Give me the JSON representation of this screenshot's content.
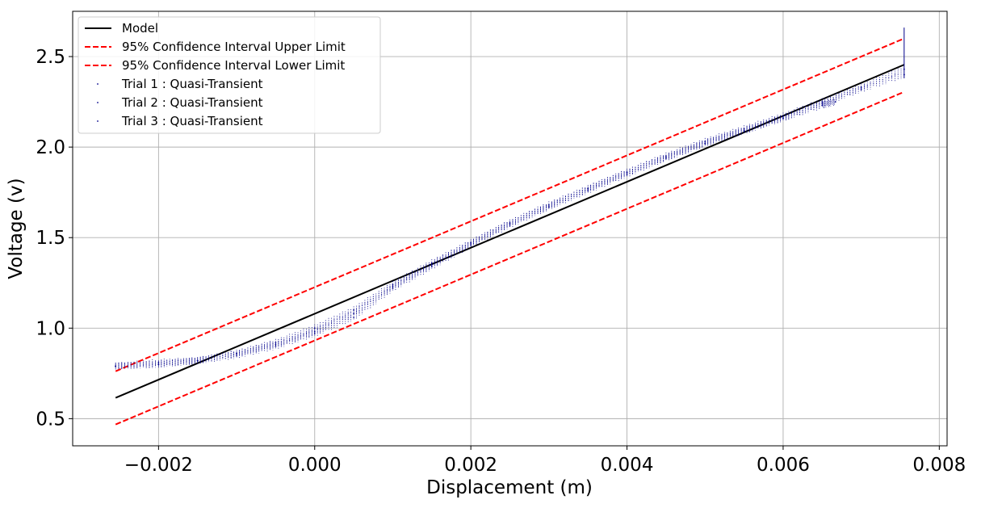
{
  "chart_data": {
    "type": "line",
    "title": "",
    "xlabel": "Displacement (m)",
    "ylabel": "Voltage (v)",
    "xlim": [
      -0.0031,
      0.0081
    ],
    "ylim": [
      0.35,
      2.75
    ],
    "x_ticks": [
      -0.002,
      0.0,
      0.002,
      0.004,
      0.006,
      0.008
    ],
    "x_tick_labels": [
      "−0.002",
      "0.000",
      "0.002",
      "0.004",
      "0.006",
      "0.008"
    ],
    "y_ticks": [
      0.5,
      1.0,
      1.5,
      2.0,
      2.5
    ],
    "y_tick_labels": [
      "0.5",
      "1.0",
      "1.5",
      "2.0",
      "2.5"
    ],
    "grid": true,
    "legend_position": "top-left",
    "series": [
      {
        "name": "Model",
        "style": "solid",
        "color": "#000000",
        "x": [
          -0.00255,
          0.00755
        ],
        "y": [
          0.615,
          2.455
        ]
      },
      {
        "name": "95% Confidence Interval Upper Limit",
        "style": "dashed",
        "color": "#ff0000",
        "x": [
          -0.00255,
          0.00755
        ],
        "y": [
          0.762,
          2.6
        ]
      },
      {
        "name": "95% Confidence Interval Lower Limit",
        "style": "dashed",
        "color": "#ff0000",
        "x": [
          -0.00255,
          0.00755
        ],
        "y": [
          0.468,
          2.305
        ]
      },
      {
        "name": "Trial 1 : Quasi-Transient",
        "style": "markers",
        "color": "#00008b",
        "x": [
          -0.00255,
          -0.002,
          -0.0015,
          -0.001,
          -0.0005,
          0.0,
          0.0005,
          0.001,
          0.0015,
          0.002,
          0.0025,
          0.003,
          0.0035,
          0.004,
          0.0045,
          0.005,
          0.0055,
          0.006,
          0.0065,
          0.007,
          0.00755
        ],
        "y": [
          0.79,
          0.8,
          0.82,
          0.86,
          0.92,
          1.0,
          1.1,
          1.24,
          1.36,
          1.47,
          1.58,
          1.68,
          1.77,
          1.86,
          1.95,
          2.03,
          2.1,
          2.17,
          2.25,
          2.33,
          2.43
        ]
      },
      {
        "name": "Trial 2 : Quasi-Transient",
        "style": "markers",
        "color": "#00008b",
        "x": [
          -0.00255,
          -0.002,
          -0.0015,
          -0.001,
          -0.0005,
          0.0,
          0.0005,
          0.001,
          0.0015,
          0.002,
          0.0025,
          0.003,
          0.0035,
          0.004,
          0.0045,
          0.005,
          0.0055,
          0.006,
          0.0065,
          0.007,
          0.00755
        ],
        "y": [
          0.79,
          0.8,
          0.82,
          0.85,
          0.9,
          0.97,
          1.06,
          1.22,
          1.34,
          1.46,
          1.57,
          1.67,
          1.76,
          1.85,
          1.94,
          2.02,
          2.09,
          2.16,
          2.24,
          2.32,
          2.4
        ]
      },
      {
        "name": "Trial 3 : Quasi-Transient",
        "style": "markers",
        "color": "#00008b",
        "x": [
          -0.00255,
          -0.002,
          -0.0015,
          -0.001,
          -0.0005,
          0.0,
          0.0005,
          0.001,
          0.0015,
          0.002,
          0.0025,
          0.003,
          0.0035,
          0.004,
          0.0045,
          0.005,
          0.0055,
          0.006,
          0.0065,
          0.00667
        ],
        "y": [
          0.79,
          0.81,
          0.82,
          0.86,
          0.91,
          0.98,
          1.08,
          1.23,
          1.35,
          1.47,
          1.58,
          1.67,
          1.77,
          1.86,
          1.94,
          2.02,
          2.09,
          2.16,
          2.23,
          2.25
        ]
      }
    ]
  }
}
